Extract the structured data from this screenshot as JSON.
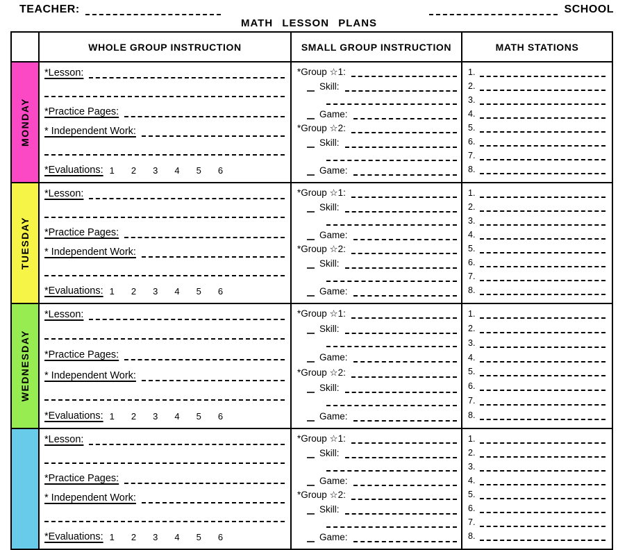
{
  "header": {
    "teacher_label": "TEACHER:",
    "school_label": "SCHOOL",
    "title": "MATH LESSON PLANS"
  },
  "table": {
    "columns": [
      "WHOLE GROUP INSTRUCTION",
      "SMALL GROUP INSTRUCTION",
      "MATH STATIONS"
    ],
    "days": [
      {
        "name": "MONDAY",
        "color": "#fb49c6"
      },
      {
        "name": "TUESDAY",
        "color": "#f6f547"
      },
      {
        "name": "WEDNESDAY",
        "color": "#97ec52"
      },
      {
        "name": "",
        "color": "#67cbe9"
      }
    ],
    "whole_group": {
      "lesson_label": "*Lesson:",
      "practice_pages_label": "*Practice Pages:",
      "independent_work_label": "* Independent Work:",
      "evaluations_label": "*Evaluations:",
      "evaluation_numbers": [
        "1",
        "2",
        "3",
        "4",
        "5",
        "6"
      ]
    },
    "small_group": {
      "group1_label": "*Group ☆1:",
      "group2_label": "*Group ☆2:",
      "skill_label": "Skill:",
      "game_label": "Game:"
    },
    "stations_numbers": [
      "1.",
      "2.",
      "3.",
      "4.",
      "5.",
      "6.",
      "7.",
      "8."
    ]
  }
}
